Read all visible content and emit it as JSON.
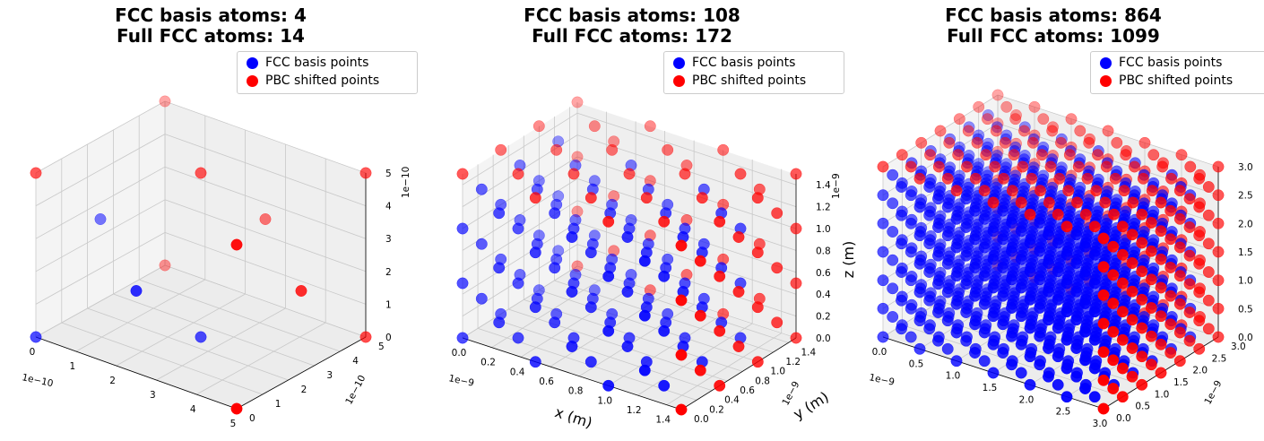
{
  "colors": {
    "basis": "#0000ff",
    "pbc": "#ff0000",
    "pane": "#f2f2f2",
    "grid": "#c8c8c8"
  },
  "legend": {
    "basis_label": "FCC basis points",
    "pbc_label": "PBC shifted points"
  },
  "chart_data": [
    {
      "type": "scatter3d",
      "title_line1": "FCC basis atoms: 4",
      "title_line2": "Full FCC atoms: 14",
      "lattice_constant": 5e-10,
      "cells": 1,
      "axis_range": [
        0,
        5e-10
      ],
      "x_ticks": [
        "0",
        "1",
        "2",
        "3",
        "4",
        "5"
      ],
      "y_ticks": [
        "0",
        "1",
        "2",
        "3",
        "4",
        "5"
      ],
      "z_ticks": [
        "0",
        "1",
        "2",
        "3",
        "4",
        "5"
      ],
      "x_offset": "1e−10",
      "y_offset": "1e−10",
      "z_offset": "1e−10",
      "xlabel": "",
      "ylabel": "",
      "zlabel": "",
      "series": [
        {
          "name": "FCC basis points",
          "count": 4
        },
        {
          "name": "PBC shifted points",
          "count": 10
        }
      ]
    },
    {
      "type": "scatter3d",
      "title_line1": "FCC basis atoms: 108",
      "title_line2": "Full FCC atoms: 172",
      "lattice_constant": 5e-10,
      "cells": 3,
      "axis_range": [
        0,
        1.5e-09
      ],
      "x_ticks": [
        "0.0",
        "0.2",
        "0.4",
        "0.6",
        "0.8",
        "1.0",
        "1.2",
        "1.4"
      ],
      "y_ticks": [
        "0.0",
        "0.2",
        "0.4",
        "0.6",
        "0.8",
        "1.0",
        "1.2",
        "1.4"
      ],
      "z_ticks": [
        "0.0",
        "0.2",
        "0.4",
        "0.6",
        "0.8",
        "1.0",
        "1.2",
        "1.4"
      ],
      "x_offset": "1e−9",
      "y_offset": "1e−9",
      "z_offset": "1e−9",
      "xlabel": "x (m)",
      "ylabel": "y (m)",
      "zlabel": "z (m)",
      "series": [
        {
          "name": "FCC basis points",
          "count": 108
        },
        {
          "name": "PBC shifted points",
          "count": 64
        }
      ]
    },
    {
      "type": "scatter3d",
      "title_line1": "FCC basis atoms: 864",
      "title_line2": "Full FCC atoms: 1099",
      "lattice_constant": 5e-10,
      "cells": 6,
      "axis_range": [
        0,
        3e-09
      ],
      "x_ticks": [
        "0.0",
        "0.5",
        "1.0",
        "1.5",
        "2.0",
        "2.5",
        "3.0"
      ],
      "y_ticks": [
        "0.0",
        "0.5",
        "1.0",
        "1.5",
        "2.0",
        "2.5",
        "3.0"
      ],
      "z_ticks": [
        "0.0",
        "0.5",
        "1.0",
        "1.5",
        "2.0",
        "2.5",
        "3.0"
      ],
      "x_offset": "1e−9",
      "y_offset": "1e−9",
      "z_offset": "",
      "xlabel": "",
      "ylabel": "",
      "zlabel": "",
      "series": [
        {
          "name": "FCC basis points",
          "count": 864
        },
        {
          "name": "PBC shifted points",
          "count": 235
        }
      ]
    }
  ]
}
